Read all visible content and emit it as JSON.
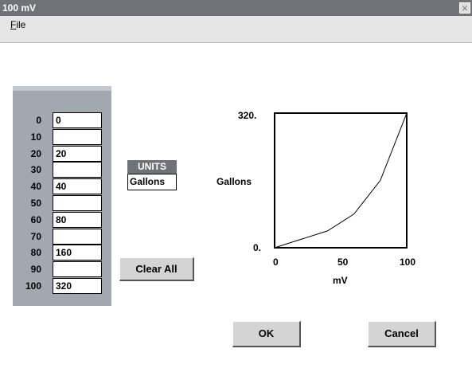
{
  "window": {
    "title": "100 mV",
    "close_glyph": "×"
  },
  "menu": {
    "file_label": "File"
  },
  "table": {
    "rows": [
      {
        "label": "0",
        "value": "0"
      },
      {
        "label": "10",
        "value": ""
      },
      {
        "label": "20",
        "value": "20"
      },
      {
        "label": "30",
        "value": ""
      },
      {
        "label": "40",
        "value": "40"
      },
      {
        "label": "50",
        "value": ""
      },
      {
        "label": "60",
        "value": "80"
      },
      {
        "label": "70",
        "value": ""
      },
      {
        "label": "80",
        "value": "160"
      },
      {
        "label": "90",
        "value": ""
      },
      {
        "label": "100",
        "value": "320"
      }
    ]
  },
  "units": {
    "header": "UNITS",
    "value": "Gallons"
  },
  "buttons": {
    "clear_all": "Clear All",
    "ok": "OK",
    "cancel": "Cancel"
  },
  "chart_data": {
    "type": "line",
    "x": [
      0,
      20,
      40,
      60,
      80,
      100
    ],
    "y": [
      0,
      20,
      40,
      80,
      160,
      320
    ],
    "xlabel": "mV",
    "ylabel": "Gallons",
    "xlim": [
      0,
      100
    ],
    "ylim": [
      0,
      320
    ],
    "x_ticks": [
      "0",
      "50",
      "100"
    ],
    "y_ticks": [
      "0.",
      "320."
    ],
    "grid": false
  }
}
